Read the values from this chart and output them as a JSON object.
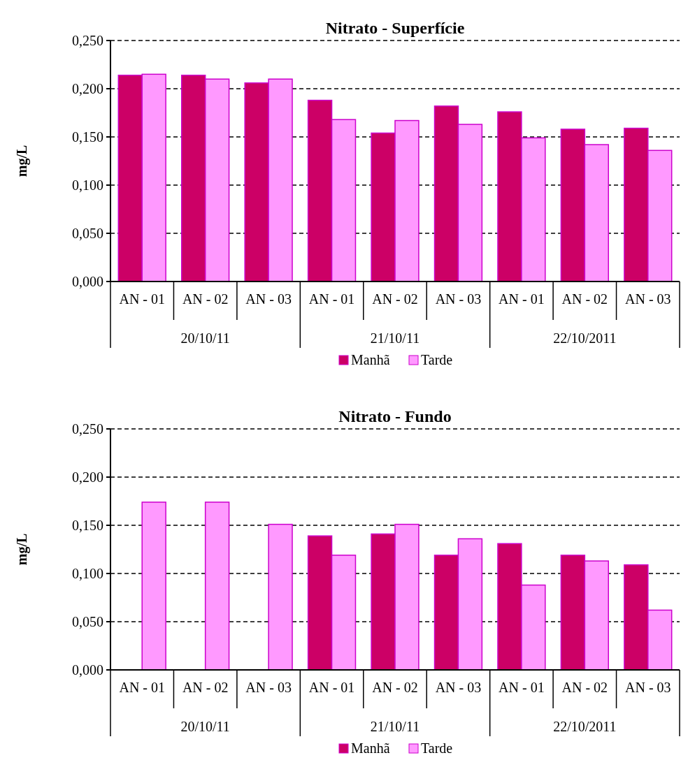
{
  "chart_data": [
    {
      "type": "bar",
      "title": "Nitrato - Superfície",
      "ylabel": "mg/L",
      "categories": [
        "AN - 01",
        "AN - 02",
        "AN - 03",
        "AN - 01",
        "AN - 02",
        "AN - 03",
        "AN - 01",
        "AN - 02",
        "AN - 03"
      ],
      "annotations": [
        "20/10/11",
        "21/10/11",
        "22/10/2011"
      ],
      "series": [
        {
          "name": "Manhã",
          "color": "#cc0066",
          "values": [
            0.214,
            0.214,
            0.206,
            0.188,
            0.154,
            0.182,
            0.176,
            0.158,
            0.159
          ]
        },
        {
          "name": "Tarde",
          "color": "#ff99ff",
          "values": [
            0.215,
            0.21,
            0.21,
            0.168,
            0.167,
            0.163,
            0.149,
            0.142,
            0.136
          ]
        }
      ],
      "ylim": [
        0,
        0.25
      ],
      "yticks": [
        {
          "value": 0,
          "label": "0,000"
        },
        {
          "value": 0.05,
          "label": "0,050"
        },
        {
          "value": 0.1,
          "label": "0,100"
        },
        {
          "value": 0.15,
          "label": "0,150"
        },
        {
          "value": 0.2,
          "label": "0,200"
        },
        {
          "value": 0.25,
          "label": "0,250"
        }
      ],
      "grid": "y",
      "legend": "bottom"
    },
    {
      "type": "bar",
      "title": "Nitrato - Fundo",
      "ylabel": "mg/L",
      "categories": [
        "AN - 01",
        "AN - 02",
        "AN - 03",
        "AN - 01",
        "AN - 02",
        "AN - 03",
        "AN - 01",
        "AN - 02",
        "AN - 03"
      ],
      "annotations": [
        "20/10/11",
        "21/10/11",
        "22/10/2011"
      ],
      "series": [
        {
          "name": "Manhã",
          "color": "#cc0066",
          "values": [
            null,
            null,
            null,
            0.139,
            0.141,
            0.119,
            0.131,
            0.119,
            0.109
          ]
        },
        {
          "name": "Tarde",
          "color": "#ff99ff",
          "values": [
            0.174,
            0.174,
            0.151,
            0.119,
            0.151,
            0.136,
            0.088,
            0.113,
            0.062
          ]
        }
      ],
      "ylim": [
        0,
        0.25
      ],
      "yticks": [
        {
          "value": 0,
          "label": "0,000"
        },
        {
          "value": 0.05,
          "label": "0,050"
        },
        {
          "value": 0.1,
          "label": "0,100"
        },
        {
          "value": 0.15,
          "label": "0,150"
        },
        {
          "value": 0.2,
          "label": "0,200"
        },
        {
          "value": 0.25,
          "label": "0,250"
        }
      ],
      "grid": "y",
      "legend": "bottom"
    }
  ]
}
